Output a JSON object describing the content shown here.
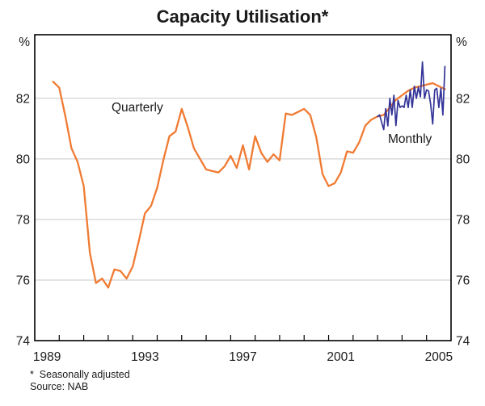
{
  "title": "Capacity Utilisation*",
  "footnotes": {
    "line1": "*  Seasonally adjusted",
    "line2": "Source: NAB"
  },
  "series_labels": {
    "quarterly": "Quarterly",
    "monthly": "Monthly"
  },
  "colors": {
    "quarterly": "#F07B33",
    "monthly": "#333399",
    "grid": "#C9C9C9",
    "frame": "#000000",
    "text": "#1a1a1a"
  },
  "y_axis": {
    "unit_label": "%",
    "tick_labels": [
      "74",
      "76",
      "78",
      "80",
      "82"
    ],
    "tick_values": [
      74,
      76,
      78,
      80,
      82
    ],
    "gridline_values": [
      76,
      78,
      80,
      82
    ],
    "min": 74,
    "max": 84.1
  },
  "x_axis": {
    "start_year": 1989,
    "end_year": 2006,
    "tick_years": [
      1990,
      1991,
      1992,
      1993,
      1994,
      1995,
      1996,
      1997,
      1998,
      1999,
      2000,
      2001,
      2002,
      2003,
      2004,
      2005
    ],
    "label_years": [
      1989,
      1993,
      1997,
      2001,
      2005
    ],
    "labels": [
      "1989",
      "1993",
      "1997",
      "2001",
      "2005"
    ]
  },
  "chart_data": {
    "type": "line",
    "title": "Capacity Utilisation*",
    "xlabel": "",
    "ylabel": "%",
    "ylim": [
      74,
      84.1
    ],
    "xlim": [
      1989,
      2006
    ],
    "grid": "horizontal",
    "legend_position": "inline-annotations",
    "series": [
      {
        "name": "Quarterly",
        "color": "#F07B33",
        "x": [
          1989.75,
          1990.0,
          1990.25,
          1990.5,
          1990.75,
          1991.0,
          1991.25,
          1991.5,
          1991.75,
          1992.0,
          1992.25,
          1992.5,
          1992.75,
          1993.0,
          1993.25,
          1993.5,
          1993.75,
          1994.0,
          1994.25,
          1994.5,
          1994.75,
          1995.0,
          1995.25,
          1995.5,
          1995.75,
          1996.0,
          1996.25,
          1996.5,
          1996.75,
          1997.0,
          1997.25,
          1997.5,
          1997.75,
          1998.0,
          1998.25,
          1998.5,
          1998.75,
          1999.0,
          1999.25,
          1999.5,
          1999.75,
          2000.0,
          2000.25,
          2000.5,
          2000.75,
          2001.0,
          2001.25,
          2001.5,
          2001.75,
          2002.0,
          2002.25,
          2002.5,
          2002.75,
          2003.0,
          2003.25,
          2003.5,
          2003.75,
          2004.0,
          2004.25,
          2004.5,
          2004.75,
          2005.0,
          2005.25,
          2005.5,
          2005.75
        ],
        "values": [
          82.55,
          82.35,
          81.4,
          80.35,
          79.9,
          79.1,
          76.9,
          75.9,
          76.05,
          75.75,
          76.35,
          76.3,
          76.05,
          76.45,
          77.3,
          78.2,
          78.45,
          79.05,
          79.95,
          80.75,
          80.9,
          81.65,
          81.05,
          80.35,
          80.0,
          79.65,
          79.6,
          79.55,
          79.75,
          80.1,
          79.7,
          80.45,
          79.65,
          80.75,
          80.2,
          79.9,
          80.15,
          79.95,
          81.5,
          81.45,
          81.55,
          81.65,
          81.45,
          80.7,
          79.5,
          79.1,
          79.2,
          79.55,
          80.25,
          80.2,
          80.55,
          81.1,
          81.3,
          81.4,
          81.45,
          81.7,
          81.95,
          82.1,
          82.25,
          82.35,
          82.4,
          82.45,
          82.5,
          82.4,
          82.3
        ]
      },
      {
        "name": "Monthly",
        "color": "#333399",
        "x": [
          2003.0,
          2003.083,
          2003.167,
          2003.25,
          2003.333,
          2003.417,
          2003.5,
          2003.583,
          2003.667,
          2003.75,
          2003.833,
          2003.917,
          2004.0,
          2004.083,
          2004.167,
          2004.25,
          2004.333,
          2004.417,
          2004.5,
          2004.583,
          2004.667,
          2004.75,
          2004.833,
          2004.917,
          2005.0,
          2005.083,
          2005.167,
          2005.25,
          2005.333,
          2005.417,
          2005.5,
          2005.583,
          2005.667,
          2005.75
        ],
        "values": [
          81.4,
          81.45,
          81.2,
          80.97,
          81.66,
          81.09,
          82.0,
          81.45,
          82.1,
          81.1,
          81.93,
          81.7,
          81.75,
          81.7,
          82.1,
          81.7,
          82.28,
          81.7,
          82.4,
          82.0,
          82.37,
          82.05,
          83.2,
          82.0,
          82.28,
          82.24,
          81.8,
          81.15,
          82.28,
          82.33,
          81.7,
          82.33,
          81.45,
          83.05
        ]
      }
    ]
  }
}
